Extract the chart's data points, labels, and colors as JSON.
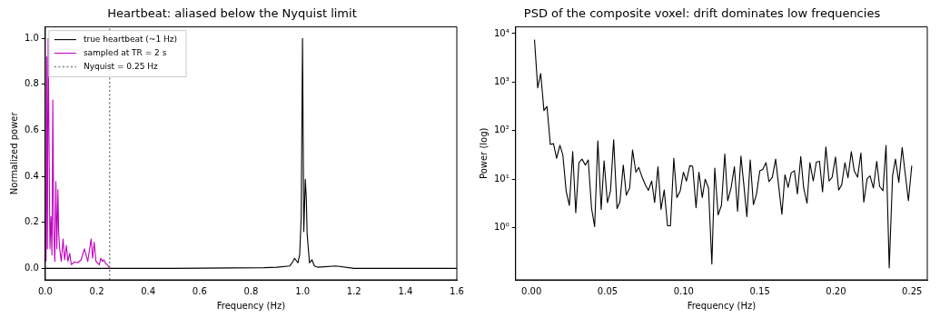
{
  "chart_data": [
    {
      "type": "line",
      "title": "Heartbeat: aliased below the Nyquist limit",
      "xlabel": "Frequency (Hz)",
      "ylabel": "Normalized power",
      "xlim": [
        0,
        1.6
      ],
      "ylim": [
        -0.05,
        1.05
      ],
      "xticks": [
        {
          "value": 0,
          "label": "0.0"
        },
        {
          "value": 0.2,
          "label": "0.2"
        },
        {
          "value": 0.4,
          "label": "0.4"
        },
        {
          "value": 0.6,
          "label": "0.6"
        },
        {
          "value": 0.8,
          "label": "0.8"
        },
        {
          "value": 1,
          "label": "1.0"
        },
        {
          "value": 1.2,
          "label": "1.2"
        },
        {
          "value": 1.4,
          "label": "1.4"
        },
        {
          "value": 1.6,
          "label": "1.6"
        }
      ],
      "yticks": [
        {
          "value": 0,
          "label": "0.0"
        },
        {
          "value": 0.2,
          "label": "0.2"
        },
        {
          "value": 0.4,
          "label": "0.4"
        },
        {
          "value": 0.6,
          "label": "0.6"
        },
        {
          "value": 0.8,
          "label": "0.8"
        },
        {
          "value": 1,
          "label": "1.0"
        }
      ],
      "legend": "top left",
      "marker": "none",
      "line_style": "solid",
      "series": [
        {
          "name": "true heartbeat (~1 Hz)",
          "color": "#000000",
          "x": [
            0,
            0.5,
            0.85,
            0.9,
            0.95,
            0.963,
            0.969,
            0.982,
            0.989,
            0.995,
            1.0,
            1.005,
            1.011,
            1.015,
            1.018,
            1.027,
            1.037,
            1.046,
            1.059,
            1.13,
            1.2,
            1.6
          ],
          "values": [
            0,
            0,
            0.003,
            0.005,
            0.01,
            0.03,
            0.044,
            0.024,
            0.06,
            0.227,
            1.0,
            0.16,
            0.387,
            0.3,
            0.15,
            0.024,
            0.037,
            0.01,
            0.005,
            0.01,
            0,
            0
          ]
        },
        {
          "name": "sampled at TR = 2 s",
          "color": "#c000c0",
          "x": [
            0.003,
            0.005,
            0.008,
            0.011,
            0.015,
            0.018,
            0.022,
            0.026,
            0.029,
            0.033,
            0.037,
            0.041,
            0.045,
            0.049,
            0.052,
            0.056,
            0.062,
            0.069,
            0.075,
            0.082,
            0.088,
            0.095,
            0.101,
            0.114,
            0.126,
            0.139,
            0.152,
            0.165,
            0.178,
            0.184,
            0.19,
            0.197,
            0.21,
            0.216,
            0.222,
            0.228,
            0.235,
            0.241,
            0.248
          ],
          "values": [
            0.03,
            0.92,
            0.085,
            1.0,
            0.475,
            0.085,
            0.225,
            0.058,
            0.732,
            0.155,
            0.03,
            0.378,
            0.085,
            0.343,
            0.155,
            0.085,
            0.03,
            0.128,
            0.037,
            0.1,
            0.03,
            0.065,
            0.016,
            0.028,
            0.024,
            0.037,
            0.085,
            0.03,
            0.128,
            0.044,
            0.114,
            0.03,
            0.016,
            0.044,
            0.03,
            0.037,
            0.019,
            0.016,
            0.003
          ]
        }
      ],
      "ref_lines": [
        {
          "axis": "x",
          "value": 0.25,
          "label": "Nyquist = 0.25 Hz",
          "color": "#808080",
          "line_style": "dotted"
        }
      ]
    },
    {
      "type": "line",
      "title": "PSD of the composite voxel: drift dominates low frequencies",
      "xlabel": "Frequency (Hz)",
      "ylabel": "Power (log)",
      "log": "y",
      "xlim": [
        -0.0104,
        0.26
      ],
      "ylim": [
        0.085,
        13700
      ],
      "xticks": [
        {
          "value": 0,
          "label": "0.00"
        },
        {
          "value": 0.05,
          "label": "0.05"
        },
        {
          "value": 0.1,
          "label": "0.10"
        },
        {
          "value": 0.15,
          "label": "0.15"
        },
        {
          "value": 0.2,
          "label": "0.20"
        },
        {
          "value": 0.25,
          "label": "0.25"
        }
      ],
      "yticks": [
        {
          "value": 1,
          "label": "10⁰"
        },
        {
          "value": 10,
          "label": "10¹"
        },
        {
          "value": 100,
          "label": "10²"
        },
        {
          "value": 1000,
          "label": "10³"
        },
        {
          "value": 10000,
          "label": "10⁴"
        }
      ],
      "marker": "none",
      "line_style": "solid",
      "series": [
        {
          "color": "#000000",
          "x": [
            0.002,
            0.0041,
            0.0061,
            0.0082,
            0.0102,
            0.0124,
            0.0145,
            0.0165,
            0.0187,
            0.0206,
            0.0228,
            0.0249,
            0.0271,
            0.0291,
            0.0312,
            0.0332,
            0.0354,
            0.0373,
            0.0395,
            0.0415,
            0.0436,
            0.0458,
            0.0477,
            0.0499,
            0.0519,
            0.054,
            0.0562,
            0.0581,
            0.0603,
            0.0623,
            0.0645,
            0.0664,
            0.0686,
            0.0705,
            0.0727,
            0.0749,
            0.0768,
            0.079,
            0.0809,
            0.0831,
            0.0851,
            0.0872,
            0.0894,
            0.0913,
            0.0935,
            0.0955,
            0.0977,
            0.0998,
            0.1018,
            0.104,
            0.1059,
            0.1081,
            0.11,
            0.1122,
            0.1141,
            0.1163,
            0.1185,
            0.1204,
            0.1226,
            0.1248,
            0.127,
            0.1289,
            0.1311,
            0.1333,
            0.1354,
            0.1376,
            0.1395,
            0.1415,
            0.1437,
            0.1458,
            0.1478,
            0.15,
            0.1519,
            0.1541,
            0.156,
            0.1582,
            0.1604,
            0.1623,
            0.1645,
            0.1665,
            0.1686,
            0.1706,
            0.1727,
            0.1747,
            0.1769,
            0.1788,
            0.181,
            0.1829,
            0.1851,
            0.1871,
            0.1892,
            0.1912,
            0.1934,
            0.1955,
            0.1975,
            0.1997,
            0.2018,
            0.2038,
            0.2059,
            0.2079,
            0.2101,
            0.212,
            0.2142,
            0.2164,
            0.2183,
            0.2205,
            0.2224,
            0.2246,
            0.2268,
            0.2287,
            0.2309,
            0.2329,
            0.235,
            0.2372,
            0.2391,
            0.2413,
            0.2435,
            0.2454,
            0.2476,
            0.2498
          ],
          "values": [
            7500,
            760,
            1500,
            260,
            315,
            52,
            54,
            27,
            50,
            32,
            5.7,
            2.9,
            37,
            2.05,
            22,
            26,
            19.5,
            25,
            2.5,
            1.06,
            62,
            2.4,
            24,
            3.3,
            5.7,
            65,
            2.5,
            3.4,
            19.6,
            4.7,
            6.6,
            40,
            14,
            17.5,
            11,
            7.6,
            5.9,
            9.2,
            3.3,
            18,
            2.4,
            6.0,
            1.1,
            1.1,
            27,
            4.2,
            5.7,
            14,
            9.2,
            19,
            18.5,
            2.6,
            14,
            4.2,
            10,
            6.6,
            0.18,
            17,
            1.85,
            2.9,
            33,
            3.6,
            6.6,
            18,
            2.2,
            30,
            7.7,
            1.7,
            25,
            3.0,
            4.9,
            15,
            16,
            22,
            8.9,
            11,
            26,
            7.7,
            1.9,
            12.4,
            6.8,
            13.5,
            15,
            5.0,
            29.5,
            6.6,
            3.2,
            22,
            9.2,
            22.5,
            23.5,
            5.5,
            46,
            9.2,
            11,
            28.6,
            6.0,
            7.7,
            22,
            10.7,
            37,
            15,
            11,
            35,
            3.4,
            10.3,
            11.7,
            6.6,
            23.5,
            7.1,
            5.8,
            50,
            0.15,
            12,
            26,
            8.6,
            45,
            14,
            3.6,
            19
          ]
        }
      ]
    }
  ]
}
